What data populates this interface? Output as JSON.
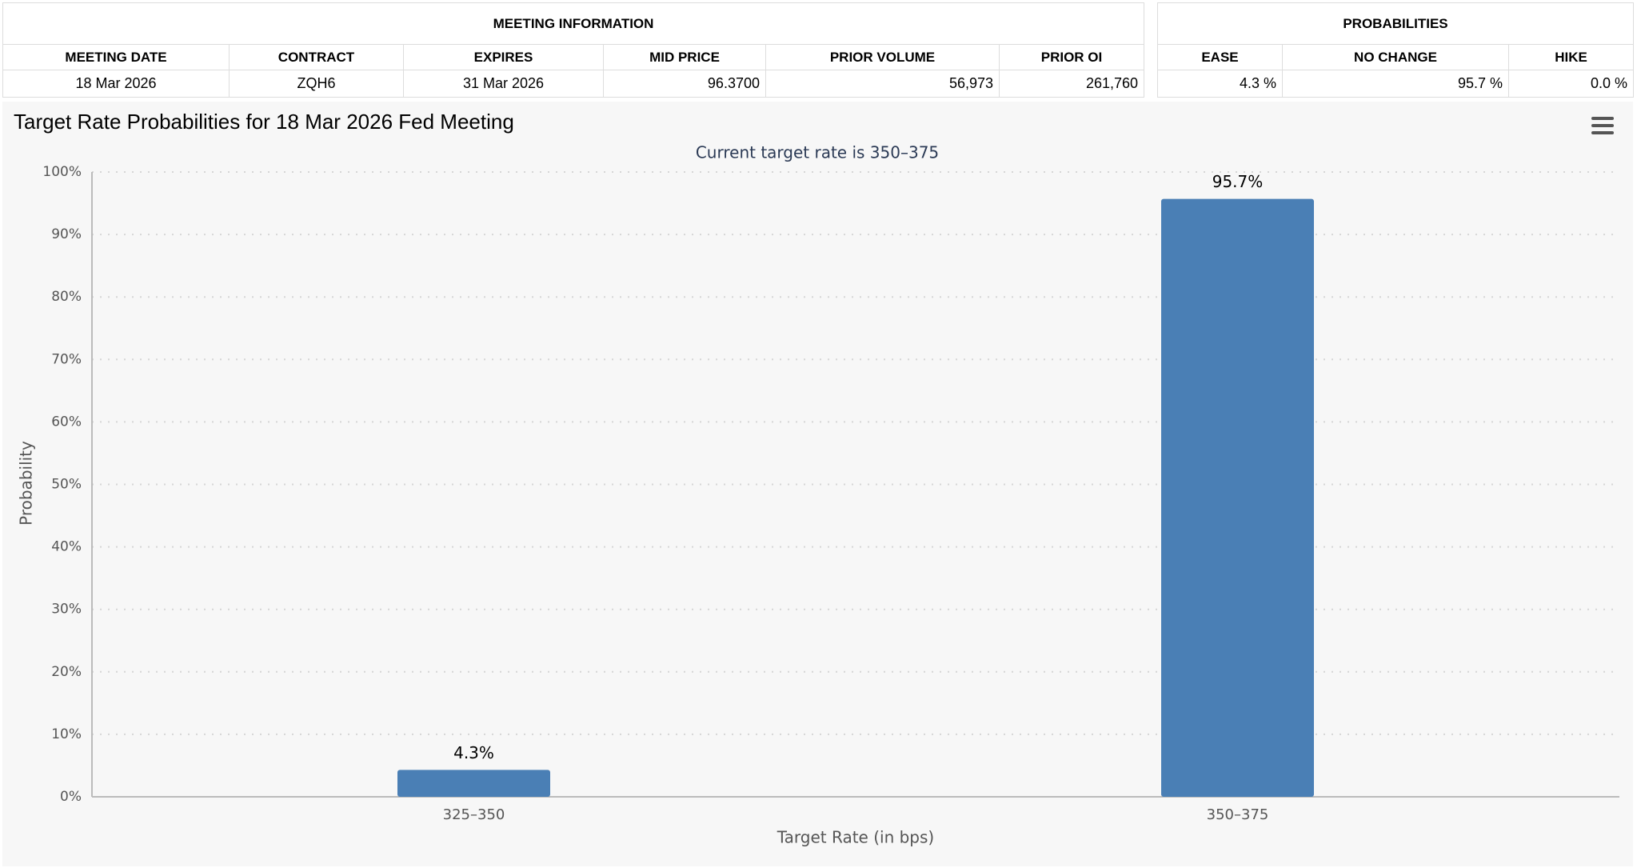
{
  "meeting_info": {
    "title": "MEETING INFORMATION",
    "headers": [
      "MEETING DATE",
      "CONTRACT",
      "EXPIRES",
      "MID PRICE",
      "PRIOR VOLUME",
      "PRIOR OI"
    ],
    "row": [
      "18 Mar 2026",
      "ZQH6",
      "31 Mar 2026",
      "96.3700",
      "56,973",
      "261,760"
    ]
  },
  "probabilities": {
    "title": "PROBABILITIES",
    "headers": [
      "EASE",
      "NO CHANGE",
      "HIKE"
    ],
    "row": [
      "4.3 %",
      "95.7 %",
      "0.0 %"
    ]
  },
  "chart_data": {
    "type": "bar",
    "title": "Target Rate Probabilities for 18 Mar 2026 Fed Meeting",
    "subtitle": "Current target rate is 350–375",
    "x_label": "Target Rate (in bps)",
    "y_label": "Probability",
    "categories": [
      "325–350",
      "350–375"
    ],
    "values": [
      4.3,
      95.7
    ],
    "value_labels": [
      "4.3%",
      "95.7%"
    ],
    "color": "#4a7fb5",
    "ylim": [
      0,
      100
    ],
    "yticks": [
      {
        "value": 0,
        "label": "0%"
      },
      {
        "value": 10,
        "label": "10%"
      },
      {
        "value": 20,
        "label": "20%"
      },
      {
        "value": 30,
        "label": "30%"
      },
      {
        "value": 40,
        "label": "40%"
      },
      {
        "value": 50,
        "label": "50%"
      },
      {
        "value": 60,
        "label": "60%"
      },
      {
        "value": 70,
        "label": "70%"
      },
      {
        "value": 80,
        "label": "80%"
      },
      {
        "value": 90,
        "label": "90%"
      },
      {
        "value": 100,
        "label": "100%"
      }
    ],
    "grid": true
  }
}
